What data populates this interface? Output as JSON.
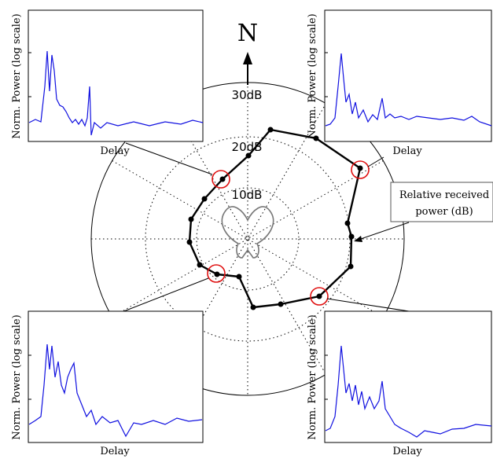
{
  "compass": {
    "label": "N"
  },
  "rings": [
    {
      "label": "10dB"
    },
    {
      "label": "20dB"
    },
    {
      "label": "30dB"
    }
  ],
  "annotation": {
    "line1": "Relative received",
    "line2": "power (dB)"
  },
  "insets": {
    "top_left": {
      "xlabel": "Delay",
      "ylabel": "Norm. Power (log scale)"
    },
    "top_right": {
      "xlabel": "Delay",
      "ylabel": "Norm. Power (log scale)"
    },
    "bottom_left": {
      "xlabel": "Delay",
      "ylabel": "Norm. Power (log scale)"
    },
    "bottom_right": {
      "xlabel": "Delay",
      "ylabel": "Norm. Power (log scale)"
    }
  },
  "colors": {
    "trace": "#1010e0",
    "marker": "#e01010",
    "polar_line": "#000000",
    "pattern": "#777777"
  }
}
